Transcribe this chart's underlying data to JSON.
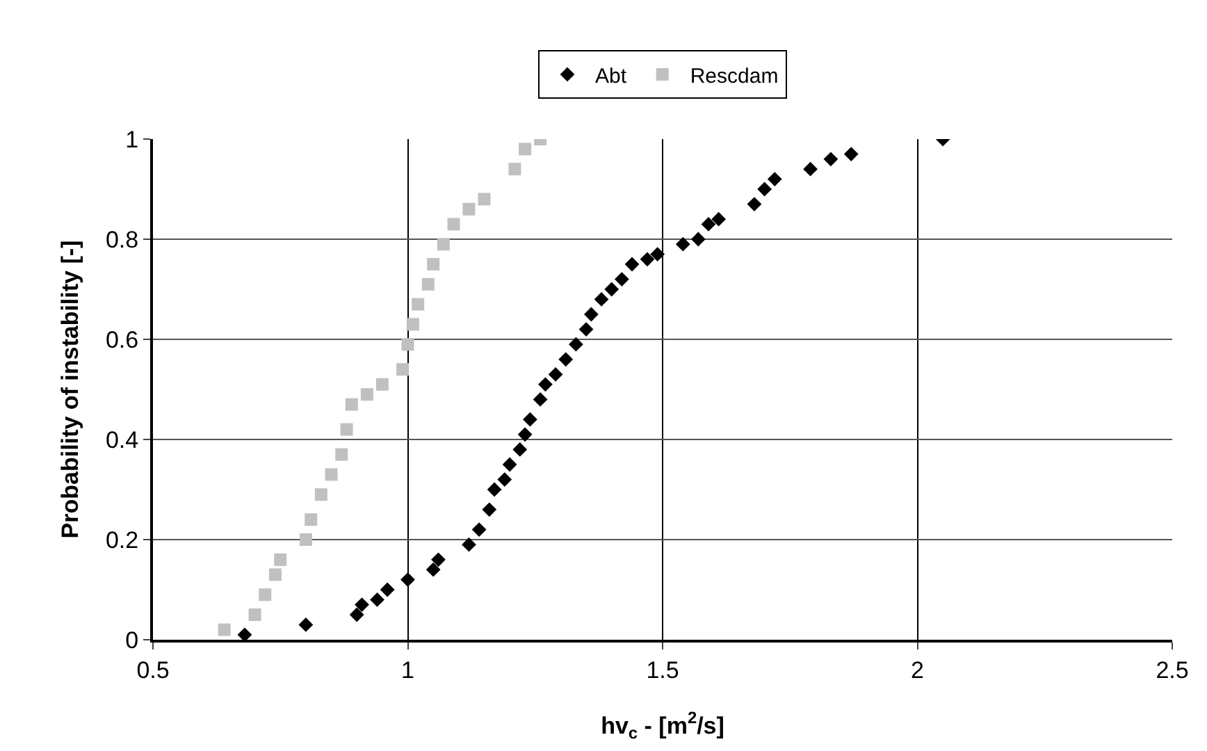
{
  "chart_data": {
    "type": "scatter",
    "xlabel": "hv$_{c}$ - [m$^{2}$/s]",
    "ylabel": "Probability of instability [-]",
    "xlim": [
      0.5,
      2.5
    ],
    "xticks": [
      0.5,
      1,
      1.5,
      2,
      2.5
    ],
    "ylim": [
      0,
      1
    ],
    "yticks": [
      0,
      0.2,
      0.4,
      0.6,
      0.8,
      1
    ],
    "grid": true,
    "legend": "top",
    "series": [
      {
        "name": "Abt",
        "color": "#000000",
        "marker": "diamond",
        "x": [
          0.68,
          0.8,
          0.9,
          0.91,
          0.94,
          0.96,
          1.0,
          1.05,
          1.06,
          1.12,
          1.14,
          1.16,
          1.17,
          1.19,
          1.2,
          1.22,
          1.23,
          1.24,
          1.26,
          1.27,
          1.29,
          1.31,
          1.33,
          1.35,
          1.36,
          1.38,
          1.4,
          1.42,
          1.44,
          1.47,
          1.49,
          1.54,
          1.57,
          1.59,
          1.61,
          1.68,
          1.7,
          1.72,
          1.79,
          1.83,
          1.87,
          2.05
        ],
        "values": [
          0.01,
          0.03,
          0.05,
          0.07,
          0.08,
          0.1,
          0.12,
          0.14,
          0.16,
          0.19,
          0.22,
          0.26,
          0.3,
          0.32,
          0.35,
          0.38,
          0.41,
          0.44,
          0.48,
          0.51,
          0.53,
          0.56,
          0.59,
          0.62,
          0.65,
          0.68,
          0.7,
          0.72,
          0.75,
          0.76,
          0.77,
          0.79,
          0.8,
          0.83,
          0.84,
          0.87,
          0.9,
          0.92,
          0.94,
          0.96,
          0.97,
          1.0
        ]
      },
      {
        "name": "Rescdam",
        "color": "#c0c0c0",
        "marker": "square",
        "x": [
          0.64,
          0.7,
          0.72,
          0.74,
          0.75,
          0.8,
          0.81,
          0.83,
          0.85,
          0.87,
          0.88,
          0.89,
          0.92,
          0.95,
          0.99,
          1.0,
          1.01,
          1.02,
          1.04,
          1.05,
          1.07,
          1.09,
          1.12,
          1.15,
          1.21,
          1.23,
          1.26
        ],
        "values": [
          0.02,
          0.05,
          0.09,
          0.13,
          0.16,
          0.2,
          0.24,
          0.29,
          0.33,
          0.37,
          0.42,
          0.47,
          0.49,
          0.51,
          0.54,
          0.59,
          0.63,
          0.67,
          0.71,
          0.75,
          0.79,
          0.83,
          0.86,
          0.88,
          0.94,
          0.98,
          1.0
        ]
      }
    ]
  }
}
